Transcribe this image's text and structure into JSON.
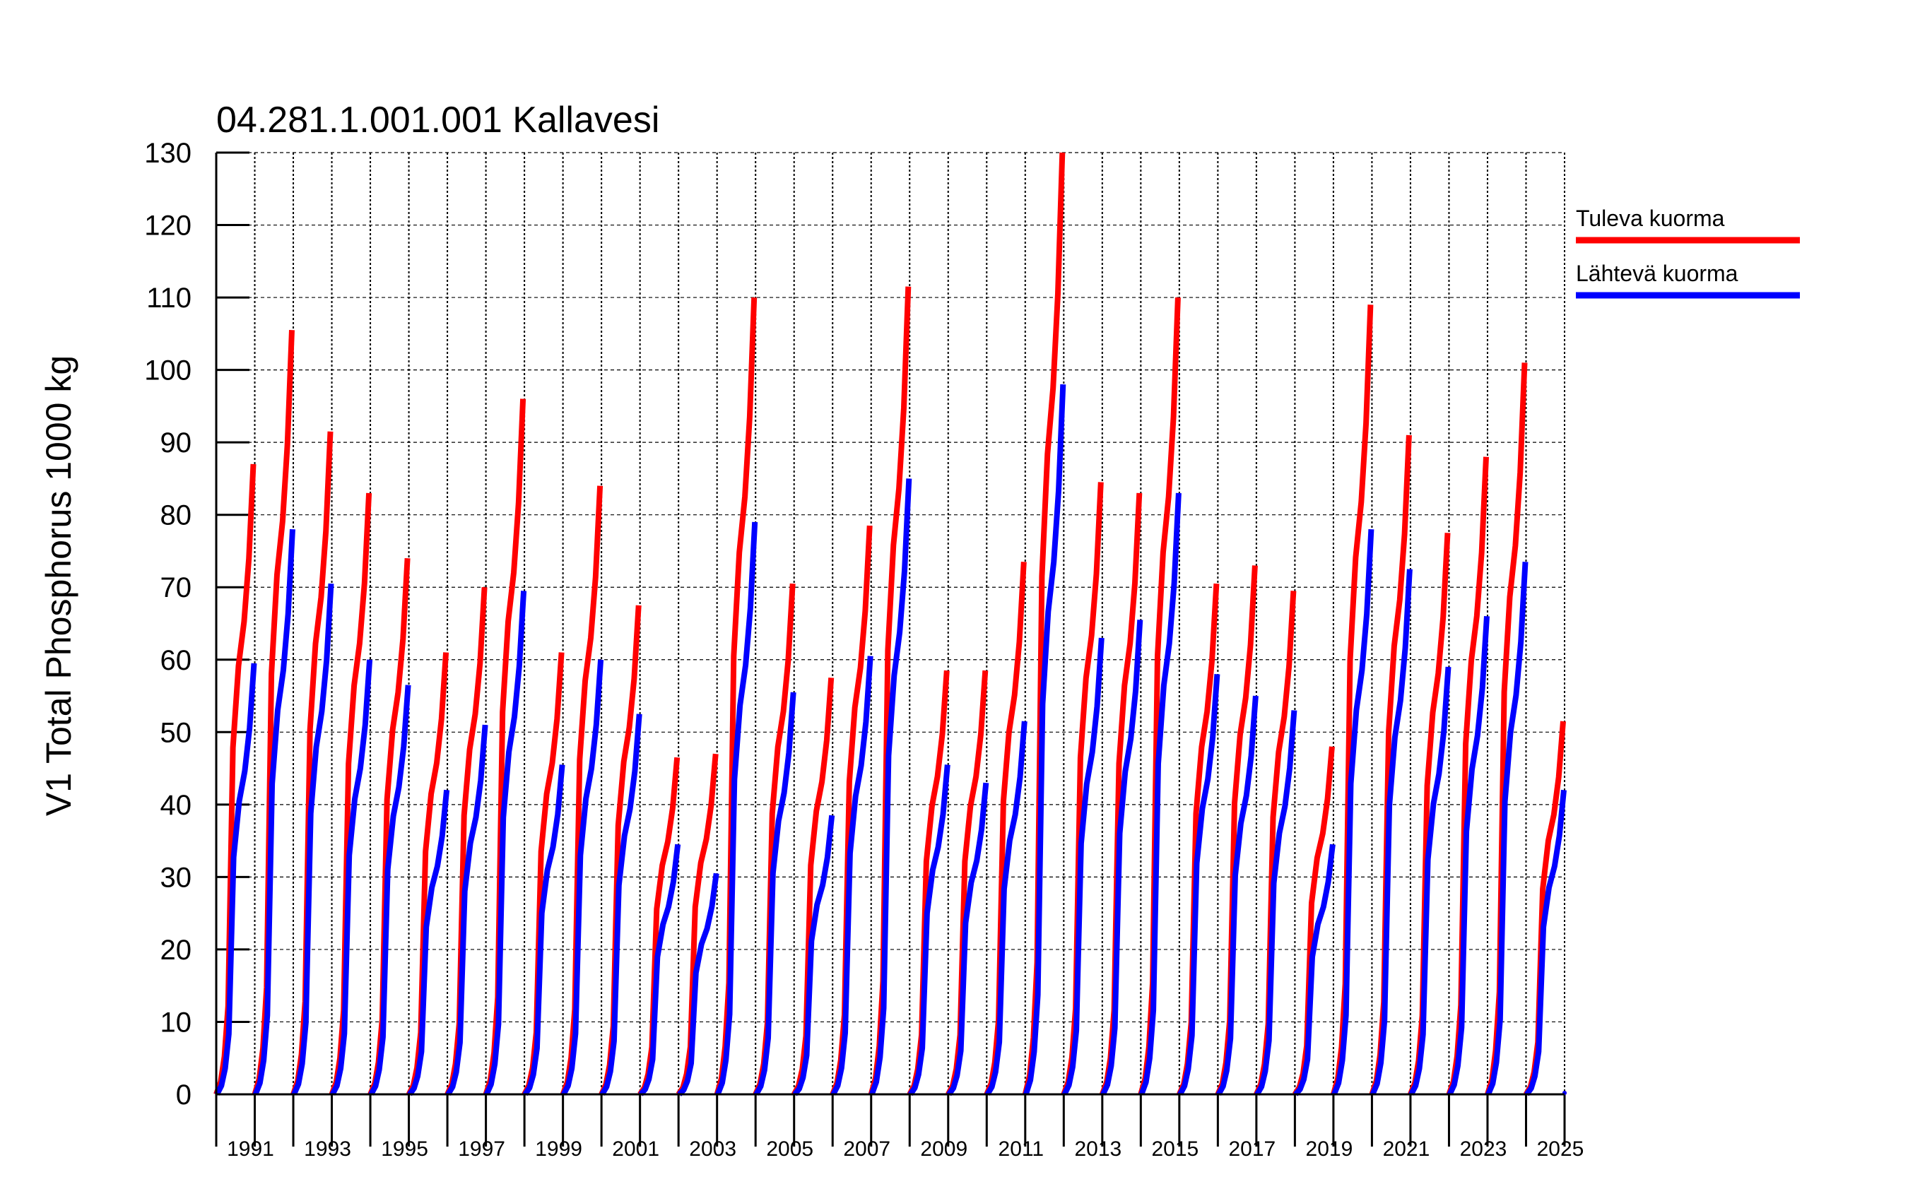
{
  "chart_data": {
    "type": "line",
    "title": "04.281.1.001.001 Kallavesi",
    "ylabel": "V1 Total Phosphorus 1000 kg",
    "xlabel": "",
    "ylim": [
      0,
      130
    ],
    "yticks": [
      0,
      10,
      20,
      30,
      40,
      50,
      60,
      70,
      80,
      90,
      100,
      110,
      120,
      130
    ],
    "xlim": [
      1990,
      2025
    ],
    "xtick_labels": [
      "1991",
      "1993",
      "1995",
      "1997",
      "1999",
      "2001",
      "2003",
      "2005",
      "2007",
      "2009",
      "2011",
      "2013",
      "2015",
      "2017",
      "2019",
      "2021",
      "2023",
      "2025"
    ],
    "grid": true,
    "legend_position": "right",
    "description_of_values": "cumulative load within each year; annual totals listed per year",
    "years": [
      1990,
      1991,
      1992,
      1993,
      1994,
      1995,
      1996,
      1997,
      1998,
      1999,
      2000,
      2001,
      2002,
      2003,
      2004,
      2005,
      2006,
      2007,
      2008,
      2009,
      2010,
      2011,
      2012,
      2013,
      2014,
      2015,
      2016,
      2017,
      2018,
      2019,
      2020,
      2021,
      2022,
      2023,
      2024,
      2025
    ],
    "series": [
      {
        "name": "Tuleva kuorma",
        "color": "#ff0000",
        "values": [
          87,
          105.5,
          91.5,
          83,
          74,
          61,
          70,
          96,
          61,
          84,
          67.5,
          46.5,
          47,
          110,
          70.5,
          57.5,
          78.5,
          111.5,
          58.5,
          58.5,
          73.5,
          130,
          84.5,
          83,
          110,
          70.5,
          73,
          69.5,
          48,
          109,
          91,
          77.5,
          88,
          101,
          51.5,
          0
        ]
      },
      {
        "name": "Lähtevä kuorma",
        "color": "#0000ff",
        "values": [
          59.5,
          78,
          70.5,
          60,
          56.5,
          42,
          51,
          69.5,
          45.5,
          60,
          52.5,
          34.5,
          30.5,
          79,
          55.5,
          38.5,
          60.5,
          85,
          45.5,
          43,
          51.5,
          98,
          63,
          65.5,
          83,
          58,
          55,
          53,
          34.5,
          78,
          72.5,
          59,
          66,
          73.5,
          42,
          0
        ]
      }
    ]
  }
}
